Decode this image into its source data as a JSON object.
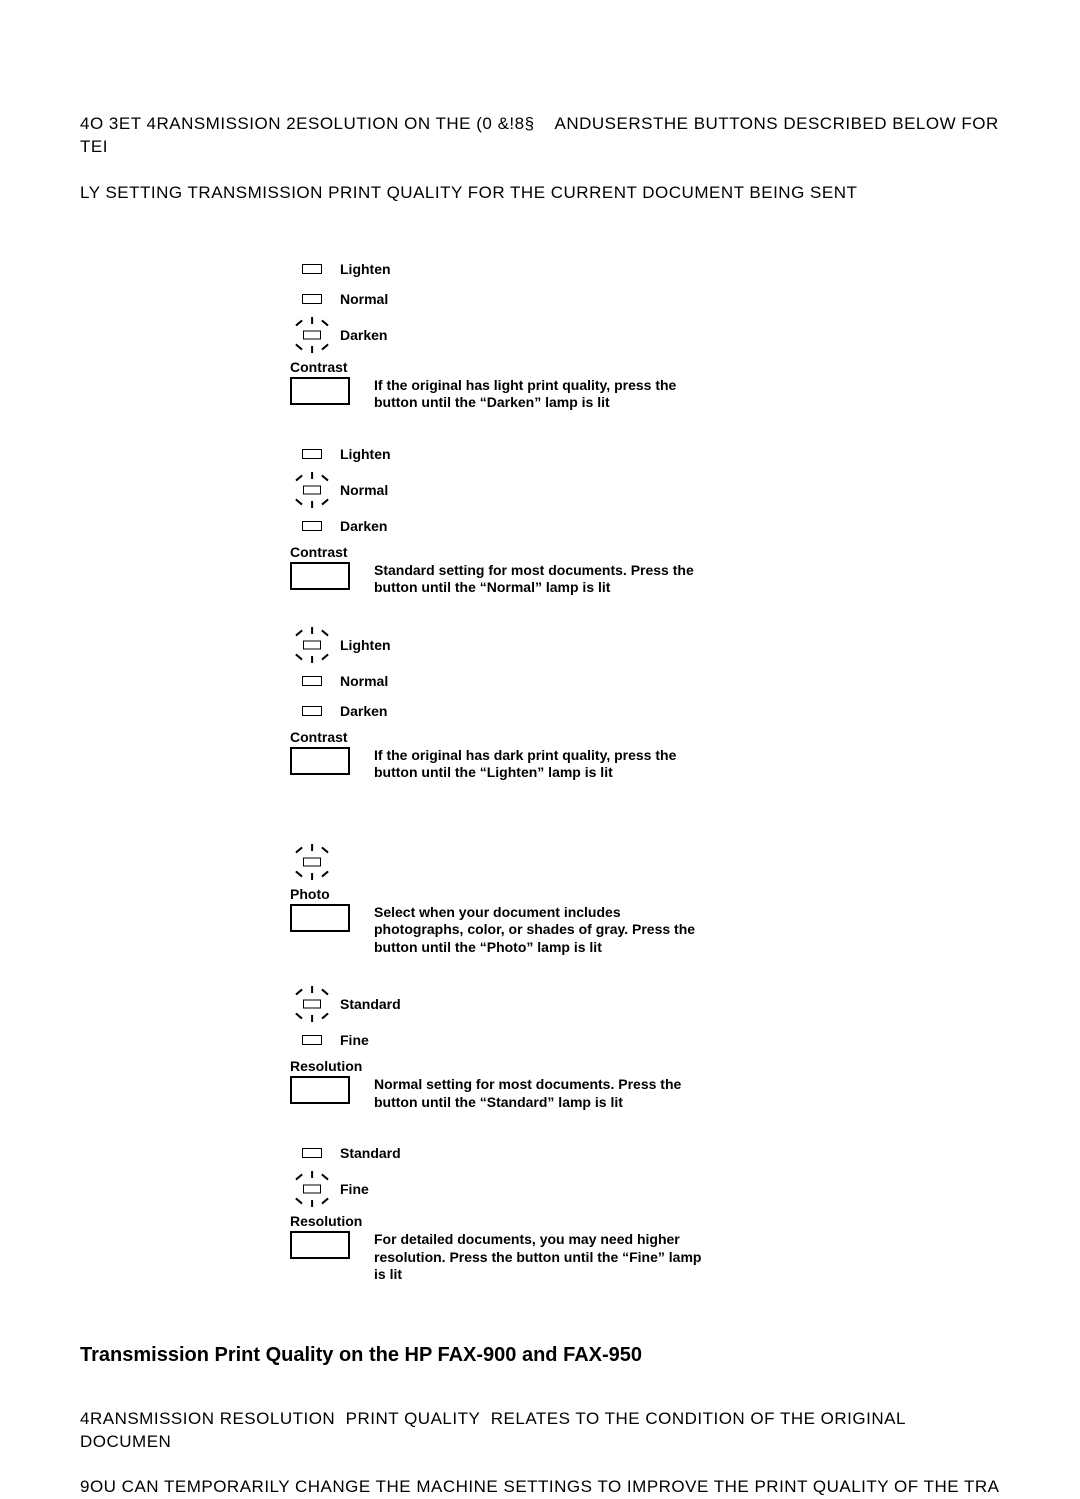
{
  "intro_line1": "4O 3ET 4RANSMISSION 2ESOLUTION ON THE (0 &!8§    ANDUSERSTHE BUTTONS DESCRIBED BELOW FOR TEI",
  "intro_line2": "LY SETTING TRANSMISSION PRINT QUALITY FOR THE CURRENT DOCUMENT BEING SENT",
  "groups": [
    {
      "lamps": [
        {
          "label": "Lighten",
          "lit": false
        },
        {
          "label": "Normal",
          "lit": false
        },
        {
          "label": "Darken",
          "lit": true
        }
      ],
      "button": "Contrast",
      "desc": "If the original has light print quality, press the button until the “Darken” lamp is lit"
    },
    {
      "lamps": [
        {
          "label": "Lighten",
          "lit": false
        },
        {
          "label": "Normal",
          "lit": true
        },
        {
          "label": "Darken",
          "lit": false
        }
      ],
      "button": "Contrast",
      "desc": "Standard setting for most documents. Press the button until the “Normal” lamp is lit"
    },
    {
      "lamps": [
        {
          "label": "Lighten",
          "lit": true
        },
        {
          "label": "Normal",
          "lit": false
        },
        {
          "label": "Darken",
          "lit": false
        }
      ],
      "button": "Contrast",
      "desc": "If the original has dark print quality, press the button until the “Lighten” lamp is lit"
    },
    {
      "lamps": [
        {
          "label": "",
          "lit": true
        }
      ],
      "button": "Photo",
      "desc": "Select when your document includes photographs, color, or shades of gray. Press the button until the “Photo” lamp is lit"
    },
    {
      "lamps": [
        {
          "label": "Standard",
          "lit": true
        },
        {
          "label": "Fine",
          "lit": false
        }
      ],
      "button": "Resolution",
      "desc": "Normal setting for most documents. Press the button until the “Standard” lamp is lit"
    },
    {
      "lamps": [
        {
          "label": "Standard",
          "lit": false
        },
        {
          "label": "Fine",
          "lit": true
        }
      ],
      "button": "Resolution",
      "desc": "For detailed documents, you may need higher resolution. Press the button until the “Fine” lamp is lit"
    }
  ],
  "section_heading": "Transmission Print Quality on the HP FAX-900 and FAX-950",
  "body1": "4RANSMISSION RESOLUTION  PRINT QUALITY  RELATES TO THE CONDITION OF THE ORIGINAL DOCUMEN",
  "body2": "9OU CAN TEMPORARILY CHANGE THE MACHINE SETTINGS TO IMPROVE THE PRINT QUALITY OF THE TRA"
}
